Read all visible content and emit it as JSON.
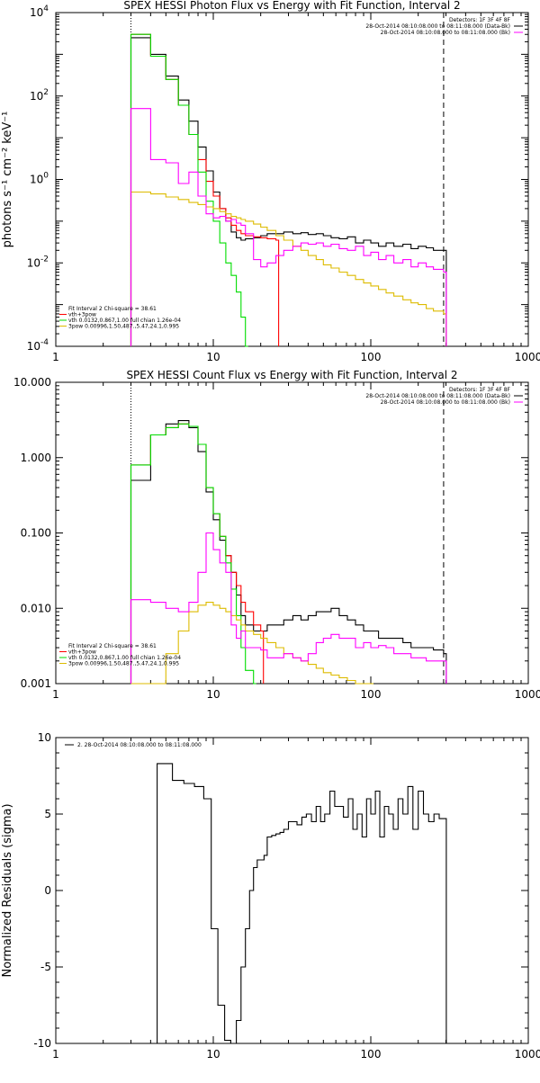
{
  "colors": {
    "total": "#000000",
    "model": "#ff0000",
    "vth": "#00dd00",
    "pow": "#ddbb00",
    "bk": "#ff00ff",
    "axis": "#000000"
  },
  "chart_data": [
    {
      "type": "line",
      "title": "SPEX HESSI Photon Flux vs Energy with Fit Function, Interval 2",
      "xlabel": "",
      "ylabel": "photons s⁻¹ cm⁻² keV⁻¹",
      "x_scale": "log",
      "y_scale": "log",
      "xlim": [
        1,
        1000
      ],
      "ylim": [
        0.0001,
        10000
      ],
      "x_ticks": [
        1,
        10,
        100,
        1000
      ],
      "x_tick_labels": [
        "1",
        "10",
        "100",
        "1000"
      ],
      "y_ticks": [
        0.0001,
        0.01,
        1,
        100,
        10000
      ],
      "y_tick_labels": [
        [
          "10",
          "-4"
        ],
        [
          "10",
          "-2"
        ],
        [
          "10",
          "0"
        ],
        [
          "10",
          "2"
        ],
        [
          "10",
          "4"
        ]
      ],
      "vlines": [
        {
          "x": 3,
          "style": "dotted"
        },
        {
          "x": 290,
          "style": "dashed"
        }
      ],
      "legend_top": [
        "Detectors: 1F 3F 4F 8F",
        "28-Oct-2014 08:10:08.000 to 08:11:08.000 (Data-Bk)",
        "28-Oct-2014 08:10:08.000 to 08:11:08.000 (Bk)"
      ],
      "legend_bottom": [
        "Fit Interval 2   Chi-square = 38.61",
        "vth+3pow",
        "vth 0.0132,0.867,1.00  full chian 1.26e-04",
        "3pow 0.00996,1.50,487.,5.47,24.1,0.995"
      ],
      "series": [
        {
          "name": "Data-Bk",
          "color_key": "total",
          "x": [
            3,
            4,
            5,
            6,
            7,
            8,
            9,
            10,
            11,
            12,
            13,
            14,
            15,
            16,
            18,
            20,
            22,
            25,
            28,
            32,
            36,
            40,
            45,
            50,
            56,
            63,
            71,
            80,
            90,
            100,
            112,
            125,
            140,
            160,
            180,
            200,
            225,
            250,
            290
          ],
          "y": [
            2500,
            1000,
            300,
            80,
            25,
            6,
            1.6,
            0.5,
            0.2,
            0.1,
            0.055,
            0.04,
            0.035,
            0.038,
            0.04,
            0.045,
            0.05,
            0.05,
            0.055,
            0.05,
            0.053,
            0.048,
            0.05,
            0.045,
            0.04,
            0.038,
            0.042,
            0.03,
            0.035,
            0.03,
            0.025,
            0.03,
            0.025,
            0.028,
            0.022,
            0.025,
            0.023,
            0.02,
            0.02
          ]
        },
        {
          "name": "vth+3pow",
          "color_key": "model",
          "x": [
            3,
            4,
            5,
            6,
            7,
            8,
            9,
            10,
            11,
            12,
            13,
            14,
            15,
            16,
            18,
            20,
            22,
            25
          ],
          "y": [
            3000,
            900,
            250,
            60,
            12,
            3,
            0.9,
            0.4,
            0.2,
            0.12,
            0.08,
            0.06,
            0.05,
            0.045,
            0.042,
            0.04,
            0.038,
            0.035
          ]
        },
        {
          "name": "vth",
          "color_key": "vth",
          "x": [
            3,
            4,
            5,
            6,
            7,
            8,
            9,
            10,
            11,
            12,
            13,
            14,
            15,
            16
          ],
          "y": [
            3000,
            900,
            250,
            60,
            12,
            1.5,
            0.3,
            0.1,
            0.03,
            0.01,
            0.005,
            0.002,
            0.0005,
            0.0001
          ]
        },
        {
          "name": "3pow",
          "color_key": "pow",
          "x": [
            3,
            4,
            5,
            6,
            7,
            8,
            9,
            10,
            11,
            12,
            13,
            14,
            15,
            16,
            18,
            20,
            22,
            25,
            28,
            32,
            36,
            40,
            45,
            50,
            56,
            63,
            71,
            80,
            90,
            100,
            112,
            125,
            140,
            160,
            180,
            200,
            225,
            250,
            290
          ],
          "y": [
            0.5,
            0.45,
            0.38,
            0.33,
            0.28,
            0.25,
            0.22,
            0.2,
            0.17,
            0.15,
            0.13,
            0.12,
            0.11,
            0.1,
            0.085,
            0.072,
            0.06,
            0.045,
            0.035,
            0.025,
            0.02,
            0.015,
            0.012,
            0.009,
            0.0075,
            0.006,
            0.005,
            0.004,
            0.0033,
            0.0028,
            0.0023,
            0.0019,
            0.0016,
            0.0013,
            0.0011,
            0.001,
            0.0008,
            0.0007,
            0.0006
          ]
        },
        {
          "name": "Bk",
          "color_key": "bk",
          "x": [
            3,
            4,
            5,
            6,
            7,
            8,
            9,
            10,
            11,
            12,
            13,
            14,
            15,
            16,
            18,
            20,
            22,
            25,
            28,
            32,
            36,
            40,
            45,
            50,
            56,
            63,
            71,
            80,
            90,
            100,
            112,
            125,
            140,
            160,
            180,
            200,
            225,
            250,
            290
          ],
          "y": [
            50,
            3,
            2.5,
            0.8,
            1.5,
            0.4,
            0.15,
            0.12,
            0.13,
            0.1,
            0.11,
            0.09,
            0.08,
            0.05,
            0.012,
            0.008,
            0.01,
            0.015,
            0.02,
            0.025,
            0.03,
            0.028,
            0.03,
            0.025,
            0.028,
            0.022,
            0.02,
            0.025,
            0.015,
            0.018,
            0.012,
            0.015,
            0.01,
            0.012,
            0.008,
            0.01,
            0.008,
            0.007,
            0.006
          ]
        }
      ]
    },
    {
      "type": "line",
      "title": "SPEX HESSI Count Flux vs Energy with Fit Function, Interval 2",
      "xlabel": "",
      "ylabel": "",
      "x_scale": "log",
      "y_scale": "log",
      "xlim": [
        1,
        1000
      ],
      "ylim": [
        0.001,
        10
      ],
      "x_ticks": [
        1,
        10,
        100,
        1000
      ],
      "x_tick_labels": [
        "1",
        "10",
        "100",
        "1000"
      ],
      "y_ticks": [
        0.001,
        0.01,
        0.1,
        1,
        10
      ],
      "y_tick_labels": [
        "0.001",
        "0.010",
        "0.100",
        "1.000",
        "10.000"
      ],
      "vlines": [
        {
          "x": 3,
          "style": "dotted"
        },
        {
          "x": 290,
          "style": "dashed"
        }
      ],
      "legend_top": [
        "Detectors: 1F 3F 4F 8F",
        "28-Oct-2014 08:10:08.000 to 08:11:08.000 (Data-Bk)",
        "28-Oct-2014 08:10:08.000 to 08:11:08.000 (Bk)"
      ],
      "legend_bottom": [
        "Fit Interval 2   Chi-square = 38.61",
        "vth+3pow",
        "vth 0.0132,0.867,1.00  full chian 1.26e-04",
        "3pow 0.00996,1.50,487.,5.47,24.1,0.995"
      ],
      "series": [
        {
          "name": "Data-Bk",
          "color_key": "total",
          "x": [
            3,
            4,
            5,
            6,
            7,
            8,
            9,
            10,
            11,
            12,
            13,
            14,
            15,
            16,
            18,
            20,
            22,
            25,
            28,
            32,
            36,
            40,
            45,
            50,
            56,
            63,
            71,
            80,
            90,
            100,
            112,
            125,
            140,
            160,
            180,
            200,
            225,
            250,
            290
          ],
          "y": [
            0.5,
            2.0,
            2.8,
            3.1,
            2.5,
            1.2,
            0.35,
            0.15,
            0.08,
            0.05,
            0.03,
            0.015,
            0.008,
            0.006,
            0.005,
            0.005,
            0.006,
            0.006,
            0.007,
            0.008,
            0.007,
            0.008,
            0.009,
            0.009,
            0.01,
            0.008,
            0.007,
            0.006,
            0.005,
            0.005,
            0.004,
            0.004,
            0.004,
            0.0035,
            0.003,
            0.003,
            0.003,
            0.0028,
            0.0025
          ]
        },
        {
          "name": "vth+3pow",
          "color_key": "model",
          "x": [
            3,
            4,
            5,
            6,
            7,
            8,
            9,
            10,
            11,
            12,
            13,
            14,
            15,
            16,
            18,
            20
          ],
          "y": [
            0.8,
            2.0,
            2.5,
            2.8,
            2.6,
            1.5,
            0.4,
            0.18,
            0.09,
            0.05,
            0.03,
            0.02,
            0.012,
            0.009,
            0.006,
            0.005
          ]
        },
        {
          "name": "vth",
          "color_key": "vth",
          "x": [
            3,
            4,
            5,
            6,
            7,
            8,
            9,
            10,
            11,
            12,
            13,
            14,
            15,
            16,
            18
          ],
          "y": [
            0.8,
            2.0,
            2.5,
            2.8,
            2.6,
            1.5,
            0.4,
            0.18,
            0.09,
            0.04,
            0.018,
            0.008,
            0.003,
            0.0015,
            0.001
          ]
        },
        {
          "name": "3pow",
          "color_key": "pow",
          "x": [
            3,
            4,
            5,
            6,
            7,
            8,
            9,
            10,
            11,
            12,
            13,
            14,
            15,
            16,
            18,
            20,
            22,
            25,
            28,
            32,
            36,
            40,
            45,
            50,
            56,
            63,
            71,
            80,
            90,
            100
          ],
          "y": [
            0.001,
            0.001,
            0.0025,
            0.005,
            0.009,
            0.011,
            0.012,
            0.011,
            0.01,
            0.009,
            0.008,
            0.007,
            0.006,
            0.005,
            0.0045,
            0.004,
            0.0035,
            0.003,
            0.0025,
            0.0022,
            0.002,
            0.0018,
            0.0016,
            0.0014,
            0.0013,
            0.0012,
            0.0011,
            0.001,
            0.001,
            0.001
          ]
        },
        {
          "name": "Bk",
          "color_key": "bk",
          "x": [
            3,
            4,
            5,
            6,
            7,
            8,
            9,
            10,
            11,
            12,
            13,
            14,
            15,
            16,
            18,
            20,
            22,
            25,
            28,
            32,
            36,
            40,
            45,
            50,
            56,
            63,
            71,
            80,
            90,
            100,
            112,
            125,
            140,
            160,
            180,
            200,
            225,
            250,
            290
          ],
          "y": [
            0.013,
            0.012,
            0.01,
            0.009,
            0.012,
            0.03,
            0.1,
            0.06,
            0.04,
            0.03,
            0.006,
            0.004,
            0.005,
            0.003,
            0.003,
            0.0028,
            0.0022,
            0.0022,
            0.0025,
            0.0022,
            0.002,
            0.0025,
            0.0035,
            0.004,
            0.0045,
            0.004,
            0.004,
            0.003,
            0.0035,
            0.003,
            0.0032,
            0.003,
            0.0025,
            0.0025,
            0.0022,
            0.0022,
            0.002,
            0.002,
            0.002
          ]
        }
      ]
    },
    {
      "type": "line",
      "title": "",
      "xlabel": "",
      "ylabel": "Normalized Residuals (sigma)",
      "x_scale": "log",
      "y_scale": "linear",
      "xlim": [
        1,
        1000
      ],
      "ylim": [
        -10,
        10
      ],
      "x_ticks": [
        1,
        10,
        100,
        1000
      ],
      "x_tick_labels": [
        "1",
        "10",
        "100",
        "1000"
      ],
      "y_ticks": [
        -10,
        -5,
        0,
        5,
        10
      ],
      "y_tick_labels": [
        "-10",
        "-5",
        "0",
        "5",
        "10"
      ],
      "legend_top": [
        "2. 28-Oct-2014 08:10:08.000 to 08:11:08.000"
      ],
      "series": [
        {
          "name": "2. 28-Oct-2014 08:10:08.000 to 08:11:08.000",
          "color_key": "total",
          "x": [
            3,
            4.4,
            5.5,
            6.5,
            7.6,
            8.7,
            9.7,
            10.7,
            11.8,
            12.9,
            14,
            15,
            16,
            17,
            18,
            19,
            20,
            21,
            22,
            23.5,
            25,
            26.5,
            28,
            30,
            32,
            34,
            36.5,
            39,
            42,
            45,
            48,
            51,
            55,
            59,
            63,
            67,
            72,
            77,
            82,
            88,
            94,
            100,
            107,
            114,
            122,
            130,
            139,
            149,
            160,
            172,
            185,
            200,
            216,
            233,
            252,
            272,
            290
          ],
          "y": [
            -10,
            8.3,
            7.2,
            7.0,
            6.8,
            6.0,
            -2.5,
            -7.5,
            -9.8,
            -10.0,
            -8.5,
            -5.0,
            -2.5,
            0.0,
            1.5,
            2.0,
            2.0,
            2.3,
            3.5,
            3.6,
            3.7,
            3.8,
            4.0,
            4.5,
            4.5,
            4.3,
            4.8,
            5.0,
            4.5,
            5.5,
            4.5,
            5.0,
            6.5,
            5.5,
            5.5,
            4.8,
            6.0,
            4.0,
            5.0,
            3.5,
            6.0,
            5.0,
            6.5,
            3.5,
            5.5,
            5.0,
            4.0,
            6.0,
            5.0,
            6.8,
            4.0,
            6.5,
            5.0,
            4.5,
            5.0,
            4.7,
            4.7
          ]
        }
      ]
    }
  ]
}
